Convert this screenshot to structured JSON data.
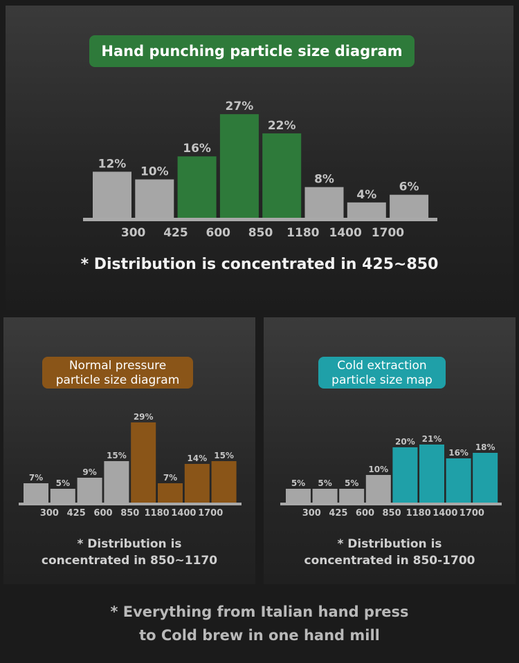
{
  "chart_data": [
    {
      "type": "bar",
      "title": "Hand punching particle size diagram",
      "tick_labels": [
        "300",
        "425",
        "600",
        "850",
        "1180",
        "1400",
        "1700"
      ],
      "values": [
        12,
        10,
        16,
        27,
        22,
        8,
        4,
        6
      ],
      "value_labels": [
        "12%",
        "10%",
        "16%",
        "27%",
        "22%",
        "8%",
        "4%",
        "6%"
      ],
      "highlighted": [
        false,
        false,
        true,
        true,
        true,
        false,
        false,
        false
      ],
      "unit": "%",
      "note": "* Distribution is concentrated in 425~850"
    },
    {
      "type": "bar",
      "title": "Normal pressure particle size diagram",
      "title_lines": [
        "Normal pressure",
        "particle size diagram"
      ],
      "tick_labels": [
        "300",
        "425",
        "600",
        "850",
        "1180",
        "1400",
        "1700"
      ],
      "values": [
        7,
        5,
        9,
        15,
        29,
        7,
        14,
        15
      ],
      "value_labels": [
        "7%",
        "5%",
        "9%",
        "15%",
        "29%",
        "7%",
        "14%",
        "15%"
      ],
      "highlighted": [
        false,
        false,
        false,
        false,
        true,
        true,
        true,
        true
      ],
      "unit": "%",
      "note_lines": [
        "* Distribution is",
        "concentrated in 850~1170"
      ]
    },
    {
      "type": "bar",
      "title": "Cold extraction particle size map",
      "title_lines": [
        "Cold extraction",
        "particle size map"
      ],
      "tick_labels": [
        "300",
        "425",
        "600",
        "850",
        "1180",
        "1400",
        "1700"
      ],
      "values": [
        5,
        5,
        5,
        10,
        20,
        21,
        16,
        18
      ],
      "value_labels": [
        "5%",
        "5%",
        "5%",
        "10%",
        "20%",
        "21%",
        "16%",
        "18%"
      ],
      "highlighted": [
        false,
        false,
        false,
        false,
        true,
        true,
        true,
        true
      ],
      "unit": "%",
      "note_lines": [
        "* Distribution is",
        "concentrated in 850-1700"
      ]
    }
  ],
  "colors": {
    "grey_bar": "#a6a6a6",
    "green": "#2e7a3a",
    "brown": "#8a5518",
    "teal": "#1fa0a8",
    "axis": "#a9a9a9",
    "label": "#c4c4c4"
  },
  "footer_lines": [
    "* Everything from Italian hand press",
    "to Cold brew in one hand mill"
  ]
}
